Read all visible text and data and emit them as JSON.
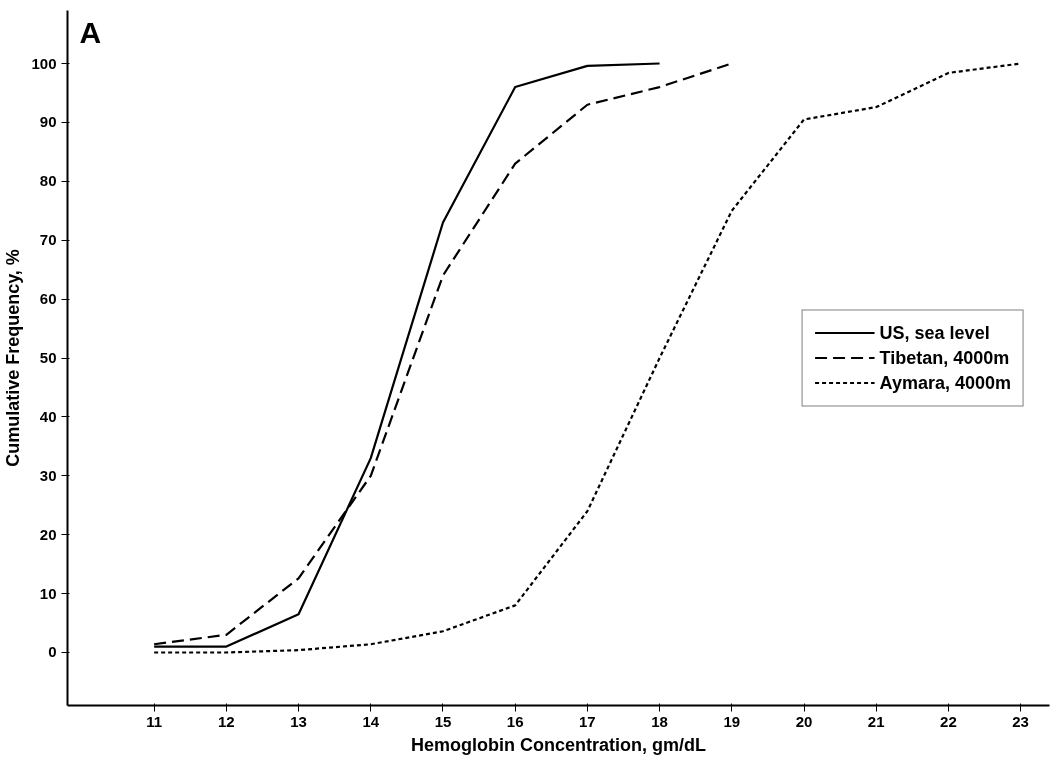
{
  "chart_data": {
    "type": "line",
    "xlabel": "Hemoglobin Concentration, gm/dL",
    "ylabel": "Cumulative Frequency, %",
    "annotations": [
      "A"
    ],
    "series": [
      {
        "name": "US, sea level",
        "color": "#000000",
        "line_style": "solid",
        "x": [
          11,
          12,
          13,
          14,
          15,
          16,
          17,
          18
        ],
        "values": [
          1,
          1,
          6.5,
          33,
          73,
          96,
          99.6,
          100
        ]
      },
      {
        "name": "Tibetan, 4000m",
        "color": "#000000",
        "line_style": "dashed",
        "x": [
          11,
          12,
          13,
          14,
          15,
          16,
          17,
          18,
          19
        ],
        "values": [
          1.4,
          3,
          12.6,
          30,
          64,
          83,
          93,
          96,
          100
        ]
      },
      {
        "name": "Aymara, 4000m",
        "color": "#000000",
        "line_style": "dotted",
        "x": [
          11,
          12,
          13,
          14,
          15,
          16,
          17,
          18,
          19,
          20,
          21,
          22,
          23
        ],
        "values": [
          0,
          0,
          0.4,
          1.4,
          3.6,
          8,
          24,
          50,
          75,
          90.5,
          92.6,
          98.4,
          100
        ]
      }
    ],
    "xlim": [
      9.8,
      23.4
    ],
    "ylim": [
      -9,
      109
    ],
    "xticks": [
      11,
      12,
      13,
      14,
      15,
      16,
      17,
      18,
      19,
      20,
      21,
      22,
      23
    ],
    "yticks": [
      0,
      10,
      20,
      30,
      40,
      50,
      60,
      70,
      80,
      90,
      100
    ],
    "grid": false,
    "legend": "right",
    "marker": "none"
  }
}
